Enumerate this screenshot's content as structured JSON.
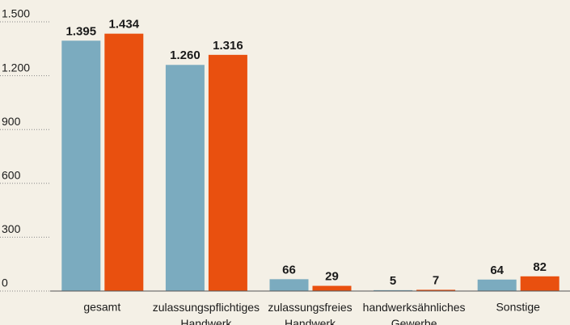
{
  "chart_data": {
    "type": "bar",
    "categories": [
      "gesamt",
      "zulassungspflichtiges Handwerk",
      "zulassungsfreies Handwerk",
      "handwerksähnliches Gewerbe",
      "Sonstige"
    ],
    "series": [
      {
        "color": "#7babbf",
        "values": [
          1395,
          1260,
          66,
          5,
          64
        ],
        "value_labels": [
          "1.395",
          "1.260",
          "66",
          "5",
          "64"
        ]
      },
      {
        "color": "#e9500f",
        "values": [
          1434,
          1316,
          29,
          7,
          82
        ],
        "value_labels": [
          "1.434",
          "1.316",
          "29",
          "7",
          "82"
        ]
      }
    ],
    "ylim": [
      0,
      1500
    ],
    "yticks": [
      0,
      300,
      600,
      900,
      {
        "value": 1200,
        "label": "1.200"
      },
      {
        "value": 1500,
        "label": "1.500"
      }
    ],
    "grid": true
  }
}
